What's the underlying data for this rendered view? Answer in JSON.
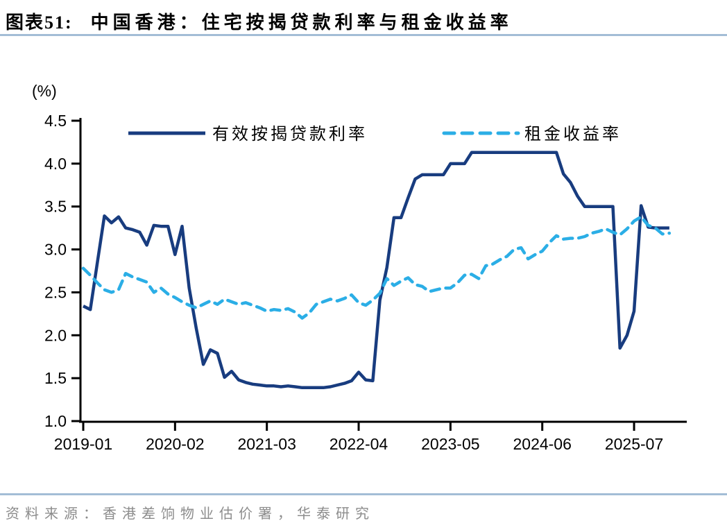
{
  "header": {
    "label": "图表51:",
    "title": "中国香港：住宅按揭贷款利率与租金收益率"
  },
  "footer": {
    "source": "资料来源：香港差饷物业估价署，华泰研究"
  },
  "colors": {
    "mortgage_line": "#183c7f",
    "rental_line": "#2baee6",
    "divider_rule": "#a3bdd6",
    "source_text": "#8c8c8c",
    "axis": "#000000"
  },
  "chart_data": {
    "type": "line",
    "title": "图表51: 中国香港：住宅按揭贷款利率与租金收益率",
    "unit_label": "(%)",
    "xlabel": "",
    "ylabel": "(%)",
    "ylim": [
      1.0,
      4.5
    ],
    "y_ticks": [
      "4.5",
      "4.0",
      "3.5",
      "3.0",
      "2.5",
      "2.0",
      "1.5",
      "1.0"
    ],
    "x_tick_labels": [
      "2019-01",
      "2020-02",
      "2021-03",
      "2022-04",
      "2023-05",
      "2024-06",
      "2025-07"
    ],
    "grid": false,
    "legend_position": "top-inside",
    "categories": [
      "2019-01",
      "2019-02",
      "2019-03",
      "2019-04",
      "2019-05",
      "2019-06",
      "2019-07",
      "2019-08",
      "2019-09",
      "2019-10",
      "2019-11",
      "2019-12",
      "2020-01",
      "2020-02",
      "2020-03",
      "2020-04",
      "2020-05",
      "2020-06",
      "2020-07",
      "2020-08",
      "2020-09",
      "2020-10",
      "2020-11",
      "2020-12",
      "2021-01",
      "2021-02",
      "2021-03",
      "2021-04",
      "2021-05",
      "2021-06",
      "2021-07",
      "2021-08",
      "2021-09",
      "2021-10",
      "2021-11",
      "2021-12",
      "2022-01",
      "2022-02",
      "2022-03",
      "2022-04",
      "2022-05",
      "2022-06",
      "2022-07",
      "2022-08",
      "2022-09",
      "2022-10",
      "2022-11",
      "2022-12",
      "2023-01",
      "2023-02",
      "2023-03",
      "2023-04",
      "2023-05",
      "2023-06",
      "2023-07",
      "2023-08",
      "2023-09",
      "2023-10",
      "2023-11",
      "2023-12",
      "2024-01",
      "2024-02",
      "2024-03",
      "2024-04",
      "2024-05",
      "2024-06",
      "2024-07",
      "2024-08",
      "2024-09",
      "2024-10",
      "2024-11",
      "2024-12",
      "2025-01",
      "2025-02",
      "2025-03",
      "2025-04",
      "2025-05",
      "2025-06",
      "2025-07",
      "2025-08",
      "2025-09",
      "2025-10",
      "2025-11",
      "2025-12"
    ],
    "series": [
      {
        "name": "有效按揭贷款利率",
        "style": "solid",
        "color": "#183c7f",
        "values": [
          2.34,
          2.3,
          2.85,
          3.39,
          3.31,
          3.38,
          3.25,
          3.23,
          3.2,
          3.05,
          3.28,
          3.27,
          3.27,
          2.94,
          3.27,
          2.55,
          2.08,
          1.66,
          1.83,
          1.79,
          1.51,
          1.58,
          1.48,
          1.45,
          1.43,
          1.42,
          1.41,
          1.41,
          1.4,
          1.41,
          1.4,
          1.39,
          1.39,
          1.39,
          1.39,
          1.4,
          1.42,
          1.44,
          1.47,
          1.57,
          1.48,
          1.47,
          2.41,
          2.79,
          3.37,
          3.37,
          3.6,
          3.82,
          3.87,
          3.87,
          3.87,
          3.87,
          4.0,
          4.0,
          4.0,
          4.13,
          4.13,
          4.13,
          4.13,
          4.13,
          4.13,
          4.13,
          4.13,
          4.13,
          4.13,
          4.13,
          4.13,
          4.13,
          3.88,
          3.78,
          3.62,
          3.5,
          3.5,
          3.5,
          3.5,
          3.5,
          1.85,
          2.0,
          2.28,
          3.51,
          3.26,
          3.25,
          3.25,
          3.25
        ]
      },
      {
        "name": "租金收益率",
        "style": "dashed",
        "color": "#2baee6",
        "values": [
          2.78,
          2.7,
          2.61,
          2.53,
          2.5,
          2.53,
          2.72,
          2.68,
          2.65,
          2.62,
          2.5,
          2.55,
          2.48,
          2.44,
          2.39,
          2.35,
          2.32,
          2.36,
          2.4,
          2.36,
          2.42,
          2.39,
          2.36,
          2.38,
          2.35,
          2.32,
          2.28,
          2.3,
          2.29,
          2.31,
          2.27,
          2.2,
          2.26,
          2.36,
          2.39,
          2.42,
          2.4,
          2.43,
          2.47,
          2.38,
          2.35,
          2.41,
          2.49,
          2.66,
          2.58,
          2.63,
          2.67,
          2.59,
          2.57,
          2.51,
          2.53,
          2.55,
          2.55,
          2.61,
          2.7,
          2.71,
          2.66,
          2.81,
          2.83,
          2.88,
          2.92,
          3.0,
          3.02,
          2.89,
          2.94,
          2.98,
          3.08,
          3.16,
          3.12,
          3.13,
          3.13,
          3.15,
          3.19,
          3.21,
          3.24,
          3.2,
          3.17,
          3.24,
          3.33,
          3.38,
          3.28,
          3.25,
          3.18,
          3.19
        ]
      }
    ]
  }
}
